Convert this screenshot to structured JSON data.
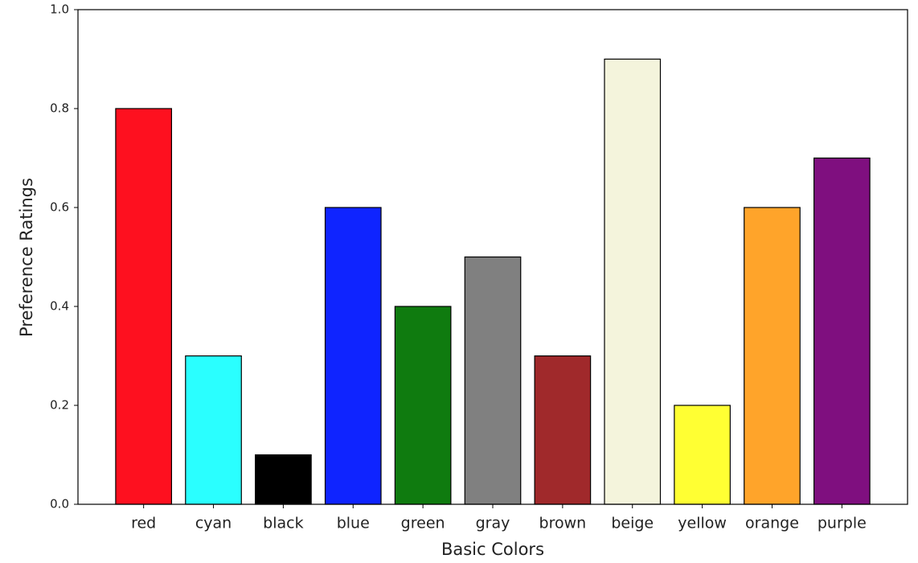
{
  "chart_data": {
    "type": "bar",
    "xlabel": "Basic Colors",
    "ylabel": "Preference Ratings",
    "categories": [
      "red",
      "cyan",
      "black",
      "blue",
      "green",
      "gray",
      "brown",
      "beige",
      "yellow",
      "orange",
      "purple"
    ],
    "values": [
      0.8,
      0.3,
      0.1,
      0.6,
      0.4,
      0.5,
      0.3,
      0.9,
      0.2,
      0.6,
      0.7
    ],
    "colors": [
      "#fe101f",
      "#2affff",
      "#000000",
      "#0f24ff",
      "#0f7b0f",
      "#808080",
      "#a0292b",
      "#f4f4dc",
      "#ffff33",
      "#ffa42a",
      "#7f0f7f"
    ],
    "edgecolor": "#000000",
    "ylim": [
      0,
      1
    ],
    "yticks": [
      {
        "value": 0,
        "label": "0.0"
      },
      0.2,
      0.4,
      0.6,
      0.8,
      {
        "value": 1,
        "label": "1.0"
      }
    ],
    "grid": false
  }
}
